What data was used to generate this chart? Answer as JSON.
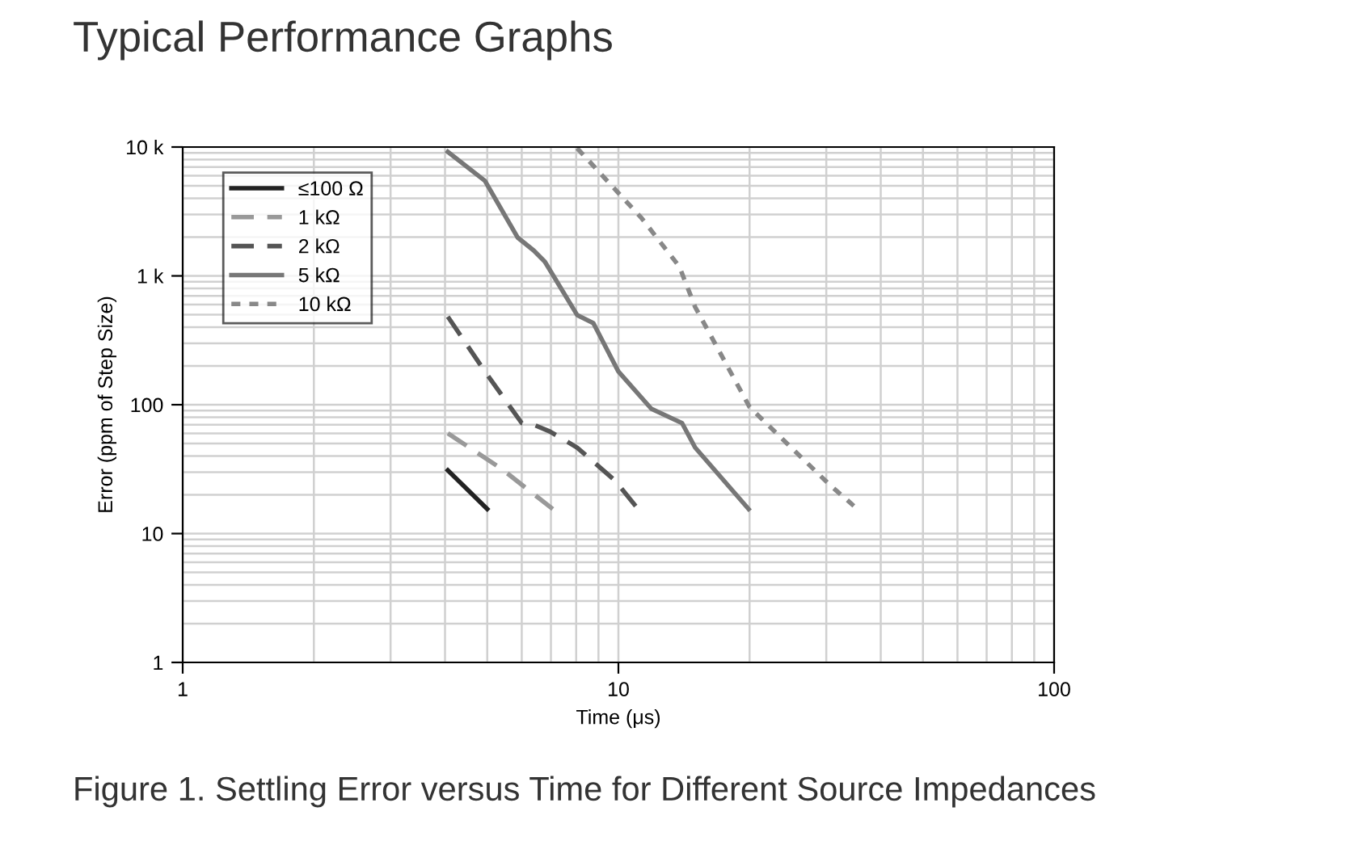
{
  "chart_data": {
    "type": "line",
    "title": "Typical Performance Graphs",
    "xlabel": "Time (μs)",
    "ylabel": "Error (ppm of Step Size)",
    "annotations": [
      "Figure 1. Settling Error versus Time for Different Source Impedances"
    ],
    "log": "xy",
    "xlim": [
      1,
      100
    ],
    "ylim": [
      1,
      10000
    ],
    "xticks": [
      1,
      10,
      100
    ],
    "yticks": [
      1,
      10,
      100,
      {
        "value": 1000,
        "label": "1 k"
      },
      {
        "value": 10000,
        "label": "10 k"
      }
    ],
    "grid": true,
    "legend": "top left",
    "series": [
      {
        "name": "≤100 Ω",
        "color": "#222222",
        "line_style": "solid",
        "x": [
          4.06,
          5.0
        ],
        "values": [
          31,
          15.5
        ]
      },
      {
        "name": "1 kΩ",
        "color": "#999999",
        "line_style": "dashed",
        "x": [
          4.06,
          5.38,
          7.07
        ],
        "values": [
          60,
          32,
          15.5
        ]
      },
      {
        "name": "2 kΩ",
        "color": "#555555",
        "line_style": "dashed",
        "x": [
          4.06,
          4.94,
          6.0,
          6.39,
          6.96,
          8.04,
          9.8,
          11.1
        ],
        "values": [
          482,
          181,
          72,
          70,
          62,
          46.5,
          26,
          15.5
        ]
      },
      {
        "name": "5 kΩ",
        "color": "#777777",
        "line_style": "solid",
        "x": [
          4.06,
          4.94,
          5.87,
          6.39,
          6.78,
          8.04,
          8.76,
          10.0,
          11.9,
          14.0,
          15.0,
          19.9
        ],
        "values": [
          9170,
          5460,
          1986,
          1575,
          1288,
          497,
          430,
          181,
          93,
          72,
          46.5,
          15.5
        ]
      },
      {
        "name": "10 kΩ",
        "color": "#888888",
        "line_style": "dotted",
        "x": [
          8.04,
          11.3,
          13.8,
          15.0,
          20.0,
          30.5,
          34.7
        ],
        "values": [
          9800,
          2810,
          1180,
          574,
          96,
          24,
          16.4
        ]
      }
    ]
  }
}
